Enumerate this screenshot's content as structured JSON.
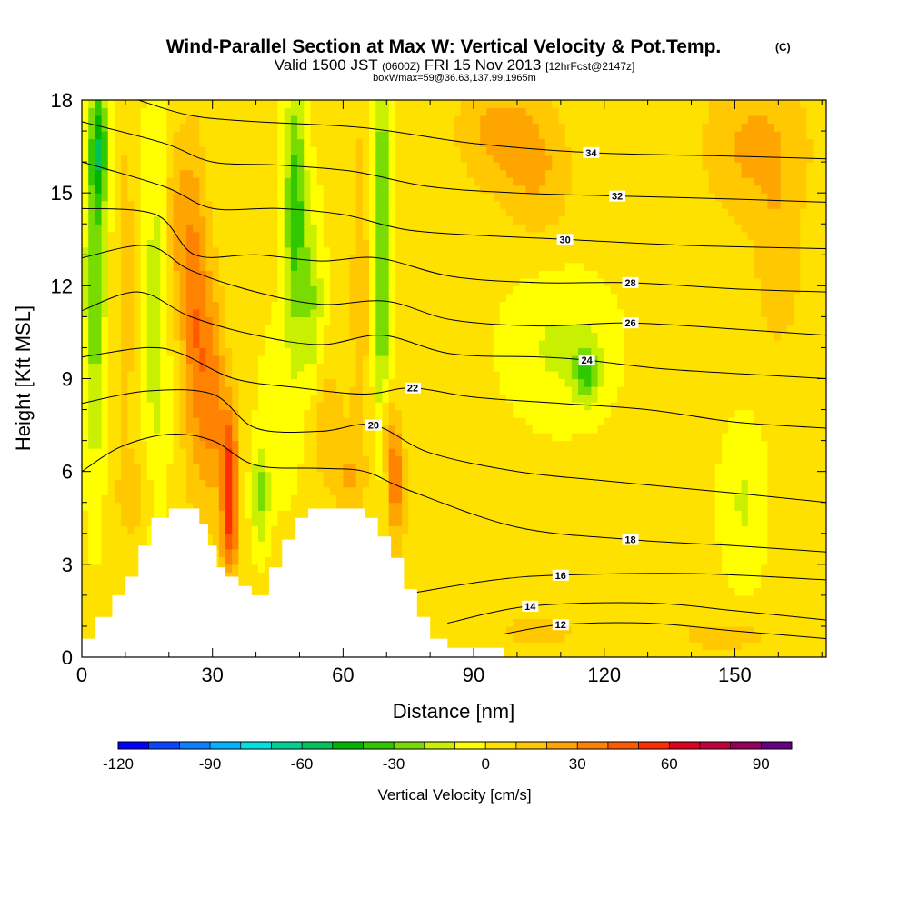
{
  "chart_data": {
    "type": "heatmap",
    "title": "Wind-Parallel Section at Max W: Vertical Velocity & Pot.Temp.",
    "title_mark": "(C)",
    "subtitle": {
      "valid": "Valid 1500 JST",
      "utc": "(0600Z)",
      "date": "FRI 15 Nov 2013",
      "forecast": "[12hrFcst@2147z]"
    },
    "subtitle2": "boxWmax=59@36.63,137.99,1965m",
    "xlabel": "Distance [nm]",
    "ylabel": "Height [Kft MSL]",
    "xlim": [
      0,
      171
    ],
    "ylim": [
      0,
      18
    ],
    "x_ticks": [
      0,
      30,
      60,
      90,
      120,
      150
    ],
    "y_ticks": [
      0,
      3,
      6,
      9,
      12,
      15,
      18
    ],
    "colorbar": {
      "label": "Vertical Velocity [cm/s]",
      "min": -120,
      "max": 100,
      "step": 10,
      "ticks": [
        -120,
        -90,
        -60,
        -30,
        0,
        30,
        60,
        90
      ],
      "colors": [
        "#0000ff",
        "#0a46ff",
        "#0a82ff",
        "#00b4ff",
        "#00e1e1",
        "#00d296",
        "#00c35a",
        "#00b400",
        "#32c800",
        "#78dc00",
        "#c8f000",
        "#ffff00",
        "#ffe100",
        "#ffc800",
        "#ffa500",
        "#ff8200",
        "#ff5a00",
        "#ff2d00",
        "#e1001e",
        "#c3003c",
        "#96005a",
        "#640082"
      ]
    },
    "terrain": [
      [
        0,
        0.6
      ],
      [
        3,
        0.6
      ],
      [
        3,
        1.3
      ],
      [
        7,
        1.3
      ],
      [
        7,
        2
      ],
      [
        10,
        2
      ],
      [
        10,
        2.6
      ],
      [
        13,
        2.6
      ],
      [
        13,
        3.6
      ],
      [
        16,
        3.6
      ],
      [
        16,
        4.5
      ],
      [
        20,
        4.5
      ],
      [
        20,
        4.8
      ],
      [
        27,
        4.8
      ],
      [
        27,
        4.3
      ],
      [
        29,
        4.3
      ],
      [
        29,
        3.6
      ],
      [
        31,
        3.6
      ],
      [
        31,
        2.9
      ],
      [
        33,
        2.9
      ],
      [
        33,
        2.6
      ],
      [
        36,
        2.6
      ],
      [
        36,
        2.3
      ],
      [
        39,
        2.3
      ],
      [
        39,
        2
      ],
      [
        43,
        2
      ],
      [
        43,
        2.9
      ],
      [
        46,
        2.9
      ],
      [
        46,
        3.8
      ],
      [
        49,
        3.8
      ],
      [
        49,
        4.5
      ],
      [
        52,
        4.5
      ],
      [
        52,
        4.8
      ],
      [
        65,
        4.8
      ],
      [
        65,
        4.5
      ],
      [
        68,
        4.5
      ],
      [
        68,
        3.9
      ],
      [
        71,
        3.9
      ],
      [
        71,
        3.2
      ],
      [
        74,
        3.2
      ],
      [
        74,
        2.2
      ],
      [
        77,
        2.2
      ],
      [
        77,
        1.3
      ],
      [
        80,
        1.3
      ],
      [
        80,
        0.6
      ],
      [
        84,
        0.6
      ],
      [
        84,
        0.3
      ],
      [
        97,
        0.3
      ],
      [
        97,
        0
      ],
      [
        171,
        0
      ]
    ],
    "w_field": [
      {
        "x": 3,
        "y": 12,
        "sx": 2.5,
        "sy": 6,
        "v": -30
      },
      {
        "x": 4,
        "y": 16.5,
        "sx": 2,
        "sy": 2,
        "v": -40
      },
      {
        "x": 10,
        "y": 12,
        "sx": 2,
        "sy": 5,
        "v": 15
      },
      {
        "x": 17,
        "y": 11,
        "sx": 3,
        "sy": 7,
        "v": -18
      },
      {
        "x": 12,
        "y": 5.3,
        "sx": 4,
        "sy": 1.3,
        "v": 15
      },
      {
        "x": 22,
        "y": 14,
        "sx": 3,
        "sy": 3,
        "v": 18
      },
      {
        "x": 26,
        "y": 11,
        "sx": 3,
        "sy": 5,
        "v": 33
      },
      {
        "x": 30,
        "y": 8.5,
        "sx": 3,
        "sy": 3.5,
        "v": 30
      },
      {
        "x": 34,
        "y": 6.2,
        "sx": 2,
        "sy": 2.2,
        "v": 45
      },
      {
        "x": 34,
        "y": 3.8,
        "sx": 2,
        "sy": 1.3,
        "v": 30
      },
      {
        "x": 41,
        "y": 5.2,
        "sx": 2,
        "sy": 1.6,
        "v": -25
      },
      {
        "x": 49,
        "y": 14.5,
        "sx": 2.5,
        "sy": 4,
        "v": -40
      },
      {
        "x": 53,
        "y": 11.5,
        "sx": 2.5,
        "sy": 3,
        "v": -22
      },
      {
        "x": 46,
        "y": 8,
        "sx": 5,
        "sy": 3,
        "v": -10
      },
      {
        "x": 56,
        "y": 7.5,
        "sx": 4,
        "sy": 2,
        "v": 15
      },
      {
        "x": 61,
        "y": 5.8,
        "sx": 3,
        "sy": 1.2,
        "v": 15
      },
      {
        "x": 64,
        "y": 12,
        "sx": 3,
        "sy": 8,
        "v": 10
      },
      {
        "x": 69,
        "y": 14.5,
        "sx": 2,
        "sy": 5,
        "v": -35
      },
      {
        "x": 69,
        "y": 9,
        "sx": 2,
        "sy": 3.5,
        "v": -15
      },
      {
        "x": 72,
        "y": 5.8,
        "sx": 1.7,
        "sy": 1.8,
        "v": 35
      },
      {
        "x": 70,
        "y": 7.5,
        "sx": 1.5,
        "sy": 1.5,
        "v": 20
      },
      {
        "x": 96,
        "y": 17,
        "sx": 10,
        "sy": 1.8,
        "v": 20
      },
      {
        "x": 105,
        "y": 15.5,
        "sx": 8,
        "sy": 2,
        "v": 15
      },
      {
        "x": 155,
        "y": 16.5,
        "sx": 12,
        "sy": 2.5,
        "v": 20
      },
      {
        "x": 160,
        "y": 12.5,
        "sx": 5,
        "sy": 2.5,
        "v": 15
      },
      {
        "x": 110,
        "y": 10,
        "sx": 12,
        "sy": 2.3,
        "v": -15
      },
      {
        "x": 116,
        "y": 9.2,
        "sx": 3,
        "sy": 0.9,
        "v": -30
      },
      {
        "x": 152,
        "y": 5,
        "sx": 5,
        "sy": 2.5,
        "v": -14
      },
      {
        "x": 105,
        "y": 0.9,
        "sx": 10,
        "sy": 0.6,
        "v": 12
      },
      {
        "x": 148,
        "y": 0.7,
        "sx": 15,
        "sy": 0.7,
        "v": 10
      },
      {
        "x": 80,
        "y": 4,
        "sx": 12,
        "sy": 3,
        "v": 6
      }
    ],
    "isentropes": [
      {
        "label": "12",
        "label_x": 110,
        "pts": [
          [
            97,
            0.75
          ],
          [
            110,
            1.05
          ],
          [
            130,
            1.1
          ],
          [
            150,
            0.85
          ],
          [
            171,
            0.6
          ]
        ]
      },
      {
        "label": "14",
        "label_x": 103,
        "pts": [
          [
            84,
            1.1
          ],
          [
            103,
            1.65
          ],
          [
            130,
            1.75
          ],
          [
            150,
            1.5
          ],
          [
            171,
            1.2
          ]
        ]
      },
      {
        "label": "16",
        "label_x": 110,
        "pts": [
          [
            77,
            2.1
          ],
          [
            95,
            2.5
          ],
          [
            110,
            2.65
          ],
          [
            140,
            2.7
          ],
          [
            171,
            2.5
          ]
        ]
      },
      {
        "label": "18",
        "label_x": 126,
        "pts": [
          [
            0,
            6
          ],
          [
            9,
            6.8
          ],
          [
            20,
            7.2
          ],
          [
            30,
            7
          ],
          [
            40,
            6.2
          ],
          [
            55,
            6.1
          ],
          [
            65,
            6
          ],
          [
            75,
            5.4
          ],
          [
            100,
            4.2
          ],
          [
            126,
            3.8
          ],
          [
            150,
            3.6
          ],
          [
            171,
            3.4
          ]
        ]
      },
      {
        "label": "20",
        "label_x": 67,
        "pts": [
          [
            0,
            8.2
          ],
          [
            15,
            8.6
          ],
          [
            30,
            8.5
          ],
          [
            40,
            7.4
          ],
          [
            55,
            7.3
          ],
          [
            67,
            7.5
          ],
          [
            80,
            6.6
          ],
          [
            100,
            6
          ],
          [
            120,
            5.7
          ],
          [
            150,
            5.3
          ],
          [
            171,
            5
          ]
        ]
      },
      {
        "label": "22",
        "label_x": 76,
        "pts": [
          [
            0,
            9.7
          ],
          [
            15,
            10
          ],
          [
            23,
            9.8
          ],
          [
            35,
            9
          ],
          [
            50,
            8.7
          ],
          [
            65,
            8.5
          ],
          [
            76,
            8.7
          ],
          [
            90,
            8.4
          ],
          [
            110,
            8.2
          ],
          [
            130,
            8
          ],
          [
            150,
            7.6
          ],
          [
            171,
            7.4
          ]
        ]
      },
      {
        "label": "24",
        "label_x": 116,
        "pts": [
          [
            0,
            11.2
          ],
          [
            13,
            11.8
          ],
          [
            25,
            11
          ],
          [
            40,
            10.4
          ],
          [
            55,
            10.1
          ],
          [
            69,
            10.4
          ],
          [
            85,
            9.8
          ],
          [
            105,
            9.7
          ],
          [
            116,
            9.6
          ],
          [
            135,
            9.3
          ],
          [
            171,
            9
          ]
        ]
      },
      {
        "label": "26",
        "label_x": 126,
        "pts": [
          [
            0,
            12.9
          ],
          [
            15,
            13.3
          ],
          [
            25,
            12.5
          ],
          [
            40,
            11.8
          ],
          [
            55,
            11.4
          ],
          [
            70,
            11.5
          ],
          [
            85,
            10.9
          ],
          [
            105,
            10.7
          ],
          [
            126,
            10.8
          ],
          [
            150,
            10.6
          ],
          [
            171,
            10.4
          ]
        ]
      },
      {
        "label": "28",
        "label_x": 126,
        "pts": [
          [
            0,
            14.5
          ],
          [
            17,
            14.3
          ],
          [
            26,
            13
          ],
          [
            40,
            13
          ],
          [
            55,
            12.8
          ],
          [
            68,
            12.9
          ],
          [
            85,
            12.3
          ],
          [
            105,
            12.1
          ],
          [
            126,
            12.1
          ],
          [
            150,
            11.9
          ],
          [
            171,
            11.8
          ]
        ]
      },
      {
        "label": "30",
        "label_x": 111,
        "pts": [
          [
            0,
            16
          ],
          [
            19,
            15.2
          ],
          [
            30,
            14.5
          ],
          [
            45,
            14.5
          ],
          [
            60,
            14.3
          ],
          [
            75,
            13.8
          ],
          [
            95,
            13.6
          ],
          [
            111,
            13.5
          ],
          [
            140,
            13.3
          ],
          [
            171,
            13.2
          ]
        ]
      },
      {
        "label": "32",
        "label_x": 123,
        "pts": [
          [
            0,
            17.3
          ],
          [
            19,
            16.6
          ],
          [
            30,
            16
          ],
          [
            45,
            15.9
          ],
          [
            62,
            15.7
          ],
          [
            80,
            15.2
          ],
          [
            100,
            15
          ],
          [
            123,
            14.9
          ],
          [
            150,
            14.8
          ],
          [
            171,
            14.7
          ]
        ]
      },
      {
        "label": "34",
        "label_x": 117,
        "pts": [
          [
            13,
            18
          ],
          [
            25,
            17.5
          ],
          [
            40,
            17.3
          ],
          [
            65,
            17.1
          ],
          [
            90,
            16.6
          ],
          [
            117,
            16.3
          ],
          [
            145,
            16.2
          ],
          [
            171,
            16.1
          ]
        ]
      }
    ]
  }
}
